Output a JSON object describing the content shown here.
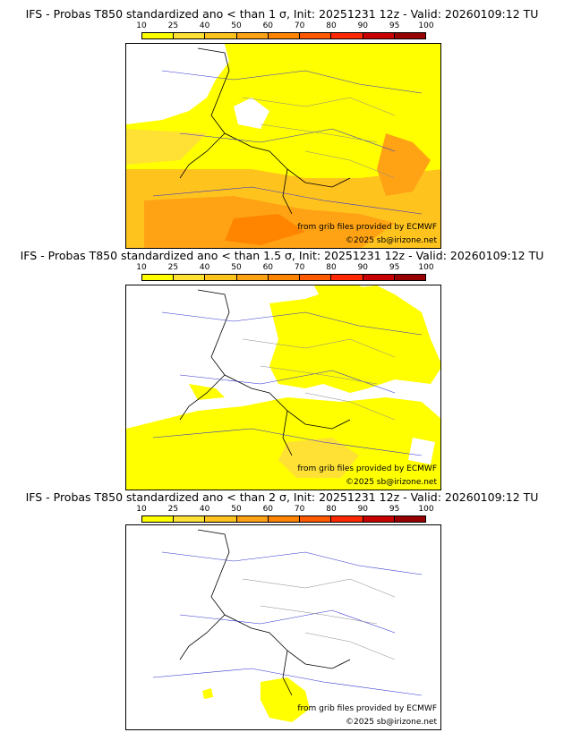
{
  "colorbar": {
    "ticks": [
      "10",
      "25",
      "40",
      "50",
      "60",
      "70",
      "80",
      "90",
      "95",
      "100"
    ],
    "colors": [
      "#ffff00",
      "#ffe135",
      "#ffc31e",
      "#ffa314",
      "#ff8500",
      "#ff5a00",
      "#ff2800",
      "#c80000",
      "#960000"
    ]
  },
  "panels": [
    {
      "title": "IFS - Probas T850  standardized ano < than 1 σ, Init: 20251231 12z - Valid: 20260109:12 TU",
      "source": "from grib files provided by ECMWF",
      "copyright": "©2025 sb@irizone.net",
      "coverage": "high"
    },
    {
      "title": "IFS - Probas T850  standardized ano < than 1.5 σ, Init: 20251231 12z - Valid: 20260109:12 TU",
      "source": "from grib files provided by ECMWF",
      "copyright": "©2025 sb@irizone.net",
      "coverage": "medium"
    },
    {
      "title": "IFS - Probas T850  standardized ano < than 2 σ, Init: 20251231 12z - Valid: 20260109:12 TU",
      "source": "from grib files provided by ECMWF",
      "copyright": "©2025 sb@irizone.net",
      "coverage": "low"
    }
  ]
}
